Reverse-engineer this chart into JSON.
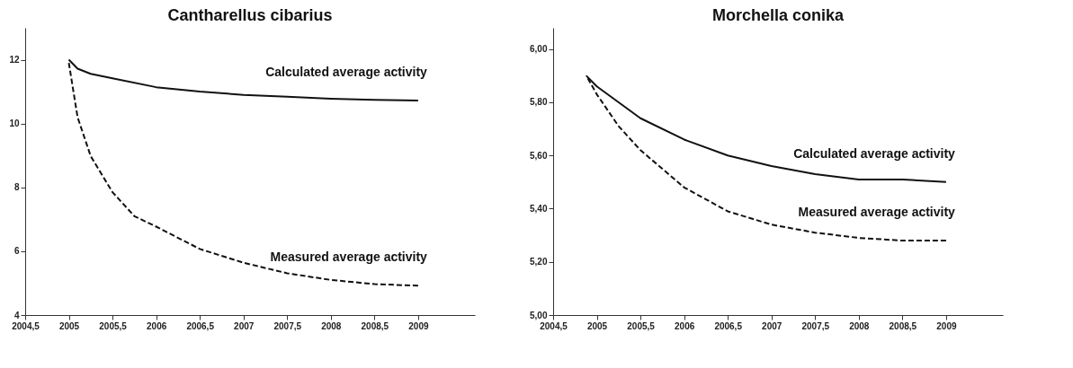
{
  "chart_data": [
    {
      "type": "line",
      "title": "Cantharellus cibarius",
      "xlim": [
        2004.5,
        2009.65
      ],
      "ylim": [
        4,
        13
      ],
      "xticks": [
        {
          "value": 2004.5,
          "label": "2004,5"
        },
        2005,
        {
          "value": 2005.5,
          "label": "2005,5"
        },
        2006,
        {
          "value": 2006.5,
          "label": "2006,5"
        },
        2007,
        {
          "value": 2007.5,
          "label": "2007,5"
        },
        2008,
        {
          "value": 2008.5,
          "label": "2008,5"
        },
        2009
      ],
      "yticks": [
        4,
        6,
        8,
        10,
        12
      ],
      "grid": false,
      "marker": "none",
      "series": [
        {
          "name": "Calculated average activity",
          "color": "#111111",
          "line_style": "solid",
          "x": [
            2005,
            2005.1,
            2005.25,
            2005.5,
            2006,
            2006.5,
            2007,
            2007.5,
            2008,
            2008.5,
            2009
          ],
          "values": [
            12.0,
            11.72,
            11.56,
            11.42,
            11.14,
            11.0,
            10.9,
            10.84,
            10.78,
            10.74,
            10.72
          ]
        },
        {
          "name": "Measured average activity",
          "color": "#111111",
          "line_style": "dashed",
          "x": [
            2005,
            2005.1,
            2005.25,
            2005.5,
            2005.75,
            2006,
            2006.5,
            2007,
            2007.5,
            2008,
            2008.5,
            2009
          ],
          "values": [
            11.9,
            10.2,
            8.98,
            7.85,
            7.1,
            6.77,
            6.07,
            5.64,
            5.31,
            5.1,
            4.97,
            4.92
          ]
        }
      ]
    },
    {
      "type": "line",
      "title": "Morchella conika",
      "xlim": [
        2004.5,
        2009.65
      ],
      "ylim": [
        5,
        6.08
      ],
      "xticks": [
        {
          "value": 2004.5,
          "label": "2004,5"
        },
        2005,
        {
          "value": 2005.5,
          "label": "2005,5"
        },
        2006,
        {
          "value": 2006.5,
          "label": "2006,5"
        },
        2007,
        {
          "value": 2007.5,
          "label": "2007,5"
        },
        2008,
        {
          "value": 2008.5,
          "label": "2008,5"
        },
        2009
      ],
      "yticks": [
        {
          "value": 5,
          "label": "5,00"
        },
        {
          "value": 5.2,
          "label": "5,20"
        },
        {
          "value": 5.4,
          "label": "5,40"
        },
        {
          "value": 5.6,
          "label": "5,60"
        },
        {
          "value": 5.8,
          "label": "5,80"
        },
        {
          "value": 6,
          "label": "6,00"
        }
      ],
      "grid": false,
      "marker": "none",
      "series": [
        {
          "name": "Calculated average activity",
          "color": "#111111",
          "line_style": "solid",
          "x": [
            2004.88,
            2005,
            2005.5,
            2006,
            2006.5,
            2007,
            2007.5,
            2008,
            2008.5,
            2009
          ],
          "values": [
            5.9,
            5.86,
            5.74,
            5.66,
            5.6,
            5.56,
            5.53,
            5.51,
            5.51,
            5.5
          ]
        },
        {
          "name": "Measured average activity",
          "color": "#111111",
          "line_style": "dashed",
          "x": [
            2004.88,
            2005,
            2005.25,
            2005.5,
            2006,
            2006.5,
            2007,
            2007.5,
            2008,
            2008.5,
            2009
          ],
          "values": [
            5.9,
            5.83,
            5.71,
            5.62,
            5.48,
            5.39,
            5.34,
            5.31,
            5.29,
            5.28,
            5.28
          ]
        }
      ]
    }
  ]
}
